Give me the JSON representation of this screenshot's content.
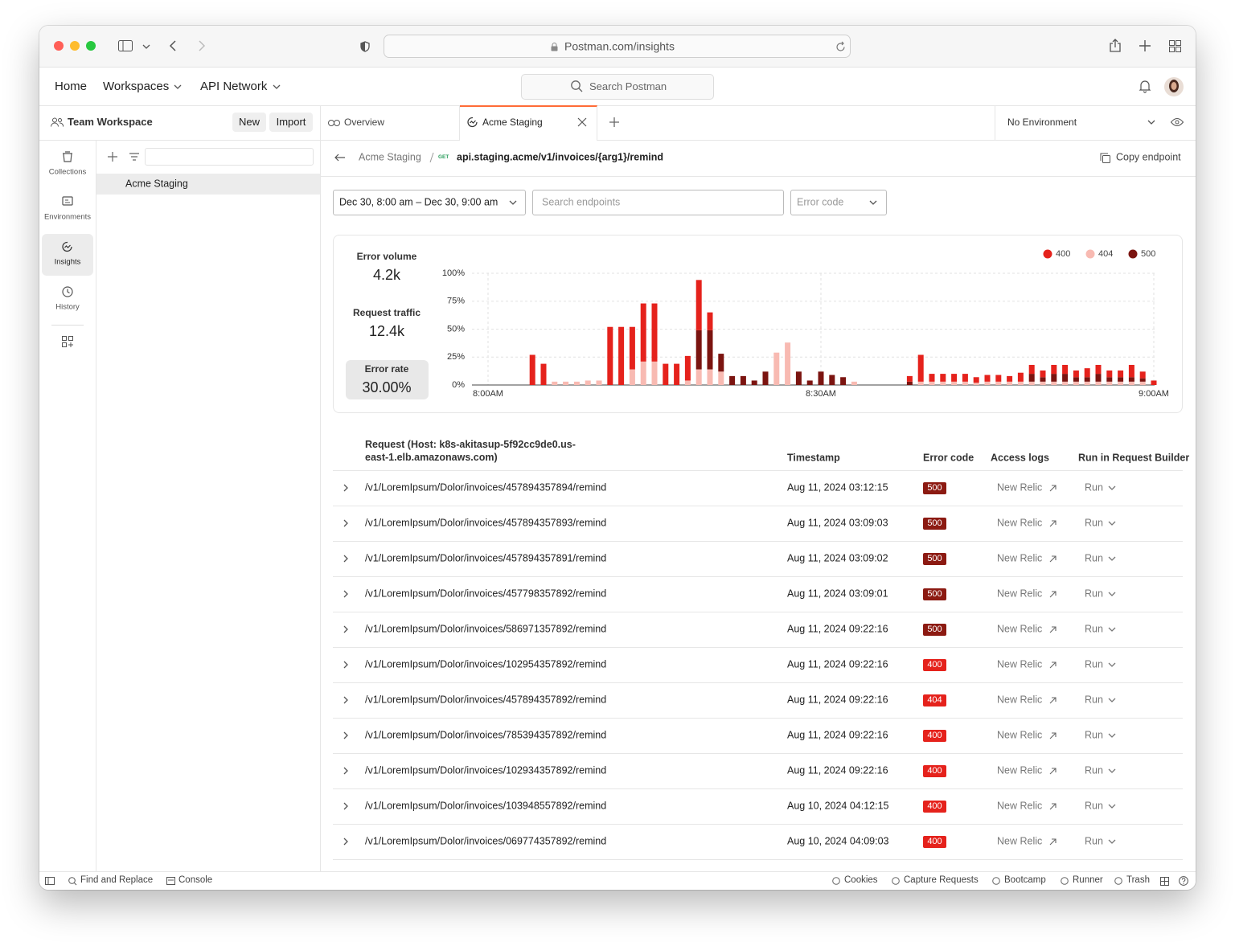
{
  "browser": {
    "url": "Postman.com/insights"
  },
  "nav": {
    "items": [
      "Home",
      "Workspaces",
      "API Network"
    ],
    "search": "Search Postman"
  },
  "workspace": {
    "name": "Team Workspace",
    "actions": [
      "New",
      "Import"
    ]
  },
  "tabs": {
    "items": [
      "Overview",
      "Acme Staging"
    ],
    "environment": "No Environment"
  },
  "sidebar": {
    "items": [
      "Collections",
      "Environments",
      "Insights",
      "History"
    ]
  },
  "tree": {
    "items": [
      "Acme Staging"
    ]
  },
  "breadcrumb": {
    "parent": "Acme Staging",
    "method": "GET",
    "endpoint": "api.staging.acme/v1/invoices/{arg1}/remind",
    "action": "Copy endpoint"
  },
  "filters": {
    "date_range": "Dec 30, 8:00 am – Dec 30, 9:00 am",
    "search": "Search endpoints",
    "error_code": "Error code"
  },
  "stats": [
    {
      "label": "Error volume",
      "value": "4.2k"
    },
    {
      "label": "Request traffic",
      "value": "12.4k"
    },
    {
      "label": "Error rate",
      "value": "30.00%"
    }
  ],
  "chart_data": {
    "type": "bar",
    "stacked": true,
    "stack_order": [
      1,
      2,
      0
    ],
    "grid": true,
    "legend": "top-right",
    "categories": [
      "8:00AM",
      null,
      null,
      null,
      null,
      null,
      null,
      null,
      null,
      null,
      null,
      null,
      null,
      null,
      null,
      null,
      null,
      null,
      null,
      null,
      null,
      null,
      null,
      null,
      null,
      null,
      null,
      null,
      null,
      null,
      "8:30AM",
      null,
      null,
      null,
      null,
      null,
      null,
      null,
      null,
      null,
      null,
      null,
      null,
      null,
      null,
      null,
      null,
      null,
      null,
      null,
      null,
      null,
      null,
      null,
      null,
      null,
      null,
      null,
      null,
      null,
      "9:00AM"
    ],
    "series": [
      {
        "name": "400",
        "color": "#e5221c",
        "values": [
          null,
          null,
          null,
          null,
          27,
          19,
          null,
          null,
          null,
          null,
          null,
          52,
          52,
          38,
          52,
          52,
          19,
          19,
          22,
          45,
          16,
          null,
          null,
          null,
          null,
          null,
          null,
          null,
          null,
          null,
          null,
          null,
          null,
          null,
          null,
          null,
          null,
          null,
          5,
          24,
          7,
          7,
          7,
          7,
          5,
          6,
          6,
          5,
          8,
          8,
          6,
          8,
          8,
          6,
          8,
          8,
          6,
          6,
          11,
          6,
          4
        ]
      },
      {
        "name": "404",
        "color": "#f8bab2",
        "values": [
          null,
          null,
          null,
          null,
          null,
          null,
          3,
          3,
          3,
          4,
          4,
          null,
          null,
          14,
          21,
          21,
          null,
          null,
          4,
          14,
          14,
          12,
          null,
          null,
          null,
          null,
          29,
          38,
          null,
          null,
          null,
          null,
          null,
          3,
          null,
          null,
          null,
          null,
          null,
          3,
          3,
          3,
          3,
          3,
          2,
          3,
          3,
          3,
          3,
          3,
          3,
          3,
          3,
          3,
          3,
          3,
          3,
          3,
          3,
          3,
          null
        ]
      },
      {
        "name": "500",
        "color": "#7b1410",
        "values": [
          null,
          null,
          null,
          null,
          null,
          null,
          null,
          null,
          null,
          null,
          null,
          null,
          null,
          null,
          null,
          null,
          null,
          null,
          null,
          35,
          35,
          16,
          8,
          8,
          4,
          12,
          null,
          null,
          12,
          4,
          12,
          9,
          7,
          null,
          null,
          null,
          null,
          null,
          3,
          null,
          null,
          null,
          null,
          null,
          null,
          null,
          null,
          null,
          null,
          7,
          4,
          7,
          7,
          4,
          4,
          7,
          4,
          4,
          4,
          3,
          null
        ]
      }
    ],
    "ylim": [
      0,
      100
    ],
    "yticks": [
      {
        "value": 0,
        "label": "0%"
      },
      {
        "value": 25,
        "label": "25%"
      },
      {
        "value": 50,
        "label": "50%"
      },
      {
        "value": 75,
        "label": "75%"
      },
      {
        "value": 100,
        "label": "100%"
      }
    ]
  },
  "table": {
    "columns": [
      "Request (Host: k8s-akitasup-5f92cc9de0.us-east-1.elb.amazonaws.com)",
      "Timestamp",
      "Error code",
      "Access logs",
      "Run in Request Builder"
    ],
    "badge_colors": {
      "400": "#e5221c",
      "404": "#e5221c",
      "500": "#8c1a12"
    },
    "rows": [
      [
        "/v1/LoremIpsum/Dolor/invoices/457894357894/remind",
        "Aug 11, 2024 03:12:15",
        "500",
        "New Relic",
        "Run"
      ],
      [
        "/v1/LoremIpsum/Dolor/invoices/457894357893/remind",
        "Aug 11, 2024 03:09:03",
        "500",
        "New Relic",
        "Run"
      ],
      [
        "/v1/LoremIpsum/Dolor/invoices/457894357891/remind",
        "Aug 11, 2024 03:09:02",
        "500",
        "New Relic",
        "Run"
      ],
      [
        "/v1/LoremIpsum/Dolor/invoices/457798357892/remind",
        "Aug 11, 2024 03:09:01",
        "500",
        "New Relic",
        "Run"
      ],
      [
        "/v1/LoremIpsum/Dolor/invoices/586971357892/remind",
        "Aug 11, 2024 09:22:16",
        "500",
        "New Relic",
        "Run"
      ],
      [
        "/v1/LoremIpsum/Dolor/invoices/102954357892/remind",
        "Aug 11, 2024 09:22:16",
        "400",
        "New Relic",
        "Run"
      ],
      [
        "/v1/LoremIpsum/Dolor/invoices/457894357892/remind",
        "Aug 11, 2024 09:22:16",
        "404",
        "New Relic",
        "Run"
      ],
      [
        "/v1/LoremIpsum/Dolor/invoices/785394357892/remind",
        "Aug 11, 2024 09:22:16",
        "400",
        "New Relic",
        "Run"
      ],
      [
        "/v1/LoremIpsum/Dolor/invoices/102934357892/remind",
        "Aug 11, 2024 09:22:16",
        "400",
        "New Relic",
        "Run"
      ],
      [
        "/v1/LoremIpsum/Dolor/invoices/103948557892/remind",
        "Aug 10, 2024 04:12:15",
        "400",
        "New Relic",
        "Run"
      ],
      [
        "/v1/LoremIpsum/Dolor/invoices/069774357892/remind",
        "Aug 10, 2024 04:09:03",
        "400",
        "New Relic",
        "Run"
      ]
    ]
  },
  "footer": {
    "left": [
      "Find and Replace",
      "Console"
    ],
    "right": [
      "Cookies",
      "Capture Requests",
      "Bootcamp",
      "Runner",
      "Trash"
    ]
  }
}
